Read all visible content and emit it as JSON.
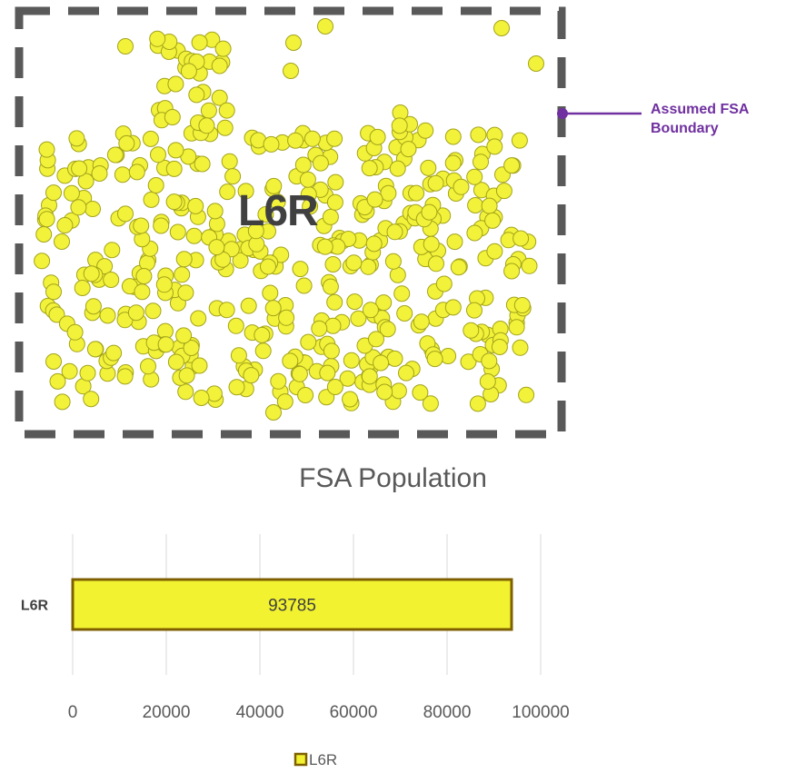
{
  "map": {
    "fsa_label": "L6R",
    "boundary_annotation": "Assumed FSA Boundary",
    "colors": {
      "point_fill": "#f2f23a",
      "point_stroke": "#a3a31a",
      "boundary": "#595959",
      "annotation": "#7030a0"
    }
  },
  "chart_data": {
    "type": "bar",
    "orientation": "horizontal",
    "title": "FSA Population",
    "categories": [
      "L6R"
    ],
    "series": [
      {
        "name": "L6R",
        "values": [
          93785
        ],
        "color": "#f2f230",
        "border": "#7f6000"
      }
    ],
    "data_labels": [
      "93785"
    ],
    "xlim": [
      0,
      100000
    ],
    "xticks": [
      0,
      20000,
      40000,
      60000,
      80000,
      100000
    ],
    "xtick_labels": [
      "0",
      "20000",
      "40000",
      "60000",
      "80000",
      "100000"
    ],
    "grid": true,
    "legend": "bottom"
  }
}
